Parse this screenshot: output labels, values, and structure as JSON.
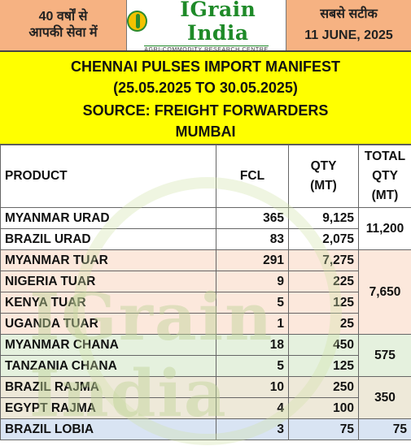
{
  "header": {
    "left_line1": "40 वर्षों से",
    "left_line2": "आपकी सेवा में",
    "logo_text": "IGrain India",
    "logo_subtitle": "AGRI-COMMODITY RESEARCH CENTRE",
    "right_line1": "सबसे सटीक",
    "right_date": "11 JUNE, 2025"
  },
  "title": {
    "line1": "CHENNAI PULSES IMPORT MANIFEST",
    "line2": "(25.05.2025 TO 30.05.2025)",
    "line3": "SOURCE: FREIGHT FORWARDERS",
    "line4": "MUMBAI"
  },
  "table": {
    "col_product": "PRODUCT",
    "col_fcl": "FCL",
    "col_qty_1": "QTY",
    "col_qty_2": "(MT)",
    "col_total_1": "TOTAL",
    "col_total_2": "QTY",
    "col_total_3": "(MT)",
    "rows": [
      {
        "product": "MYANMAR URAD",
        "fcl": "365",
        "qty": "9,125"
      },
      {
        "product": "BRAZIL URAD",
        "fcl": "83",
        "qty": "2,075"
      },
      {
        "product": "MYANMAR TUAR",
        "fcl": "291",
        "qty": "7,275"
      },
      {
        "product": "NIGERIA TUAR",
        "fcl": "9",
        "qty": "225"
      },
      {
        "product": "KENYA TUAR",
        "fcl": "5",
        "qty": "125"
      },
      {
        "product": "UGANDA TUAR",
        "fcl": "1",
        "qty": "25"
      },
      {
        "product": "MYANMAR CHANA",
        "fcl": "18",
        "qty": "450"
      },
      {
        "product": "TANZANIA CHANA",
        "fcl": "5",
        "qty": "125"
      },
      {
        "product": "BRAZIL RAJMA",
        "fcl": "10",
        "qty": "250"
      },
      {
        "product": "EGYPT RAJMA",
        "fcl": "4",
        "qty": "100"
      },
      {
        "product": "BRAZIL LOBIA",
        "fcl": "3",
        "qty": "75"
      }
    ],
    "totals": {
      "urad": "11,200",
      "tuar": "7,650",
      "chana": "575",
      "rajma": "350",
      "lobia": "75"
    }
  }
}
